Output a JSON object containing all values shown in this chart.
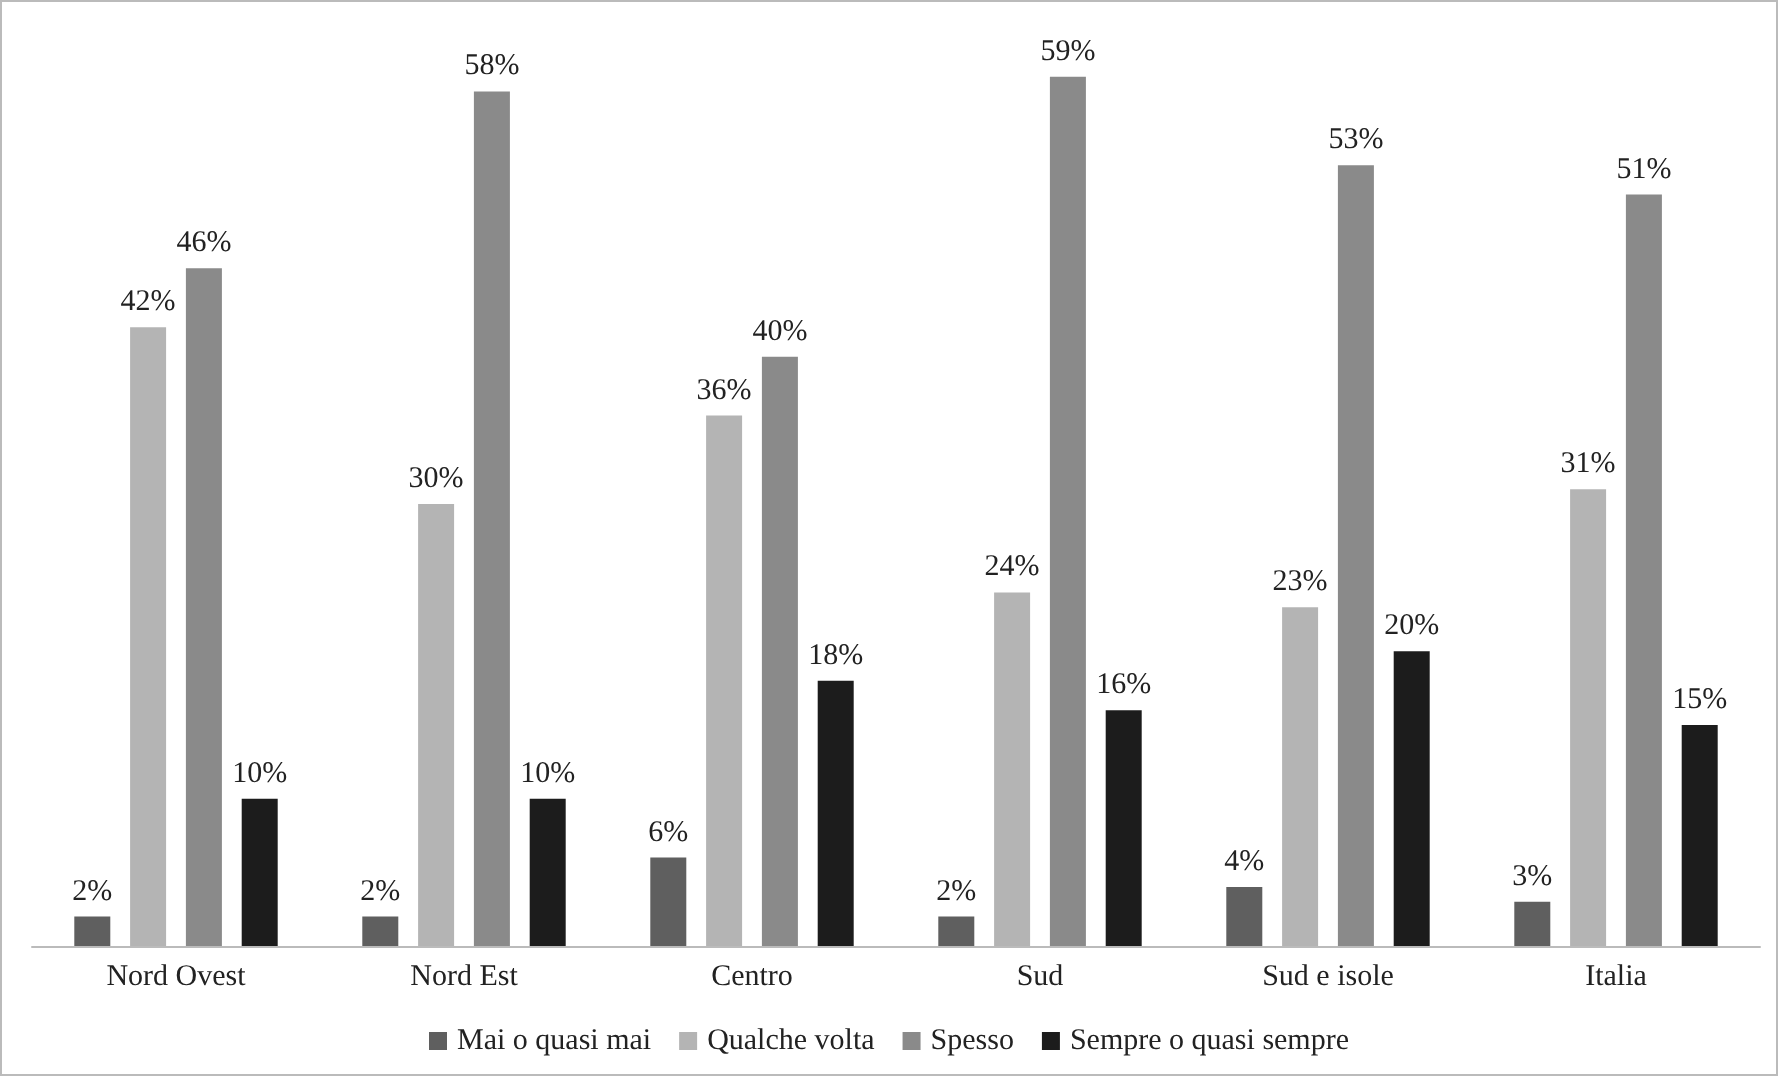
{
  "chart_data": {
    "type": "bar",
    "categories": [
      "Nord Ovest",
      "Nord Est",
      "Centro",
      "Sud",
      "Sud e isole",
      "Italia"
    ],
    "series": [
      {
        "name": "Mai o quasi mai",
        "color": "#5f5f5f",
        "values": [
          2,
          2,
          6,
          2,
          4,
          3
        ],
        "value_labels": [
          "2%",
          "2%",
          "6%",
          "2%",
          "4%",
          "3%"
        ]
      },
      {
        "name": "Qualche volta",
        "color": "#b4b4b4",
        "values": [
          42,
          30,
          36,
          24,
          23,
          31
        ],
        "value_labels": [
          "42%",
          "30%",
          "36%",
          "24%",
          "23%",
          "31%"
        ]
      },
      {
        "name": "Spesso",
        "color": "#8a8a8a",
        "values": [
          46,
          58,
          40,
          59,
          53,
          51
        ],
        "value_labels": [
          "46%",
          "58%",
          "40%",
          "59%",
          "53%",
          "51%"
        ]
      },
      {
        "name": "Sempre o quasi sempre",
        "color": "#1c1c1c",
        "values": [
          10,
          10,
          18,
          16,
          20,
          15
        ],
        "value_labels": [
          "10%",
          "10%",
          "18%",
          "16%",
          "20%",
          "15%"
        ]
      }
    ],
    "legend": "bottom"
  }
}
